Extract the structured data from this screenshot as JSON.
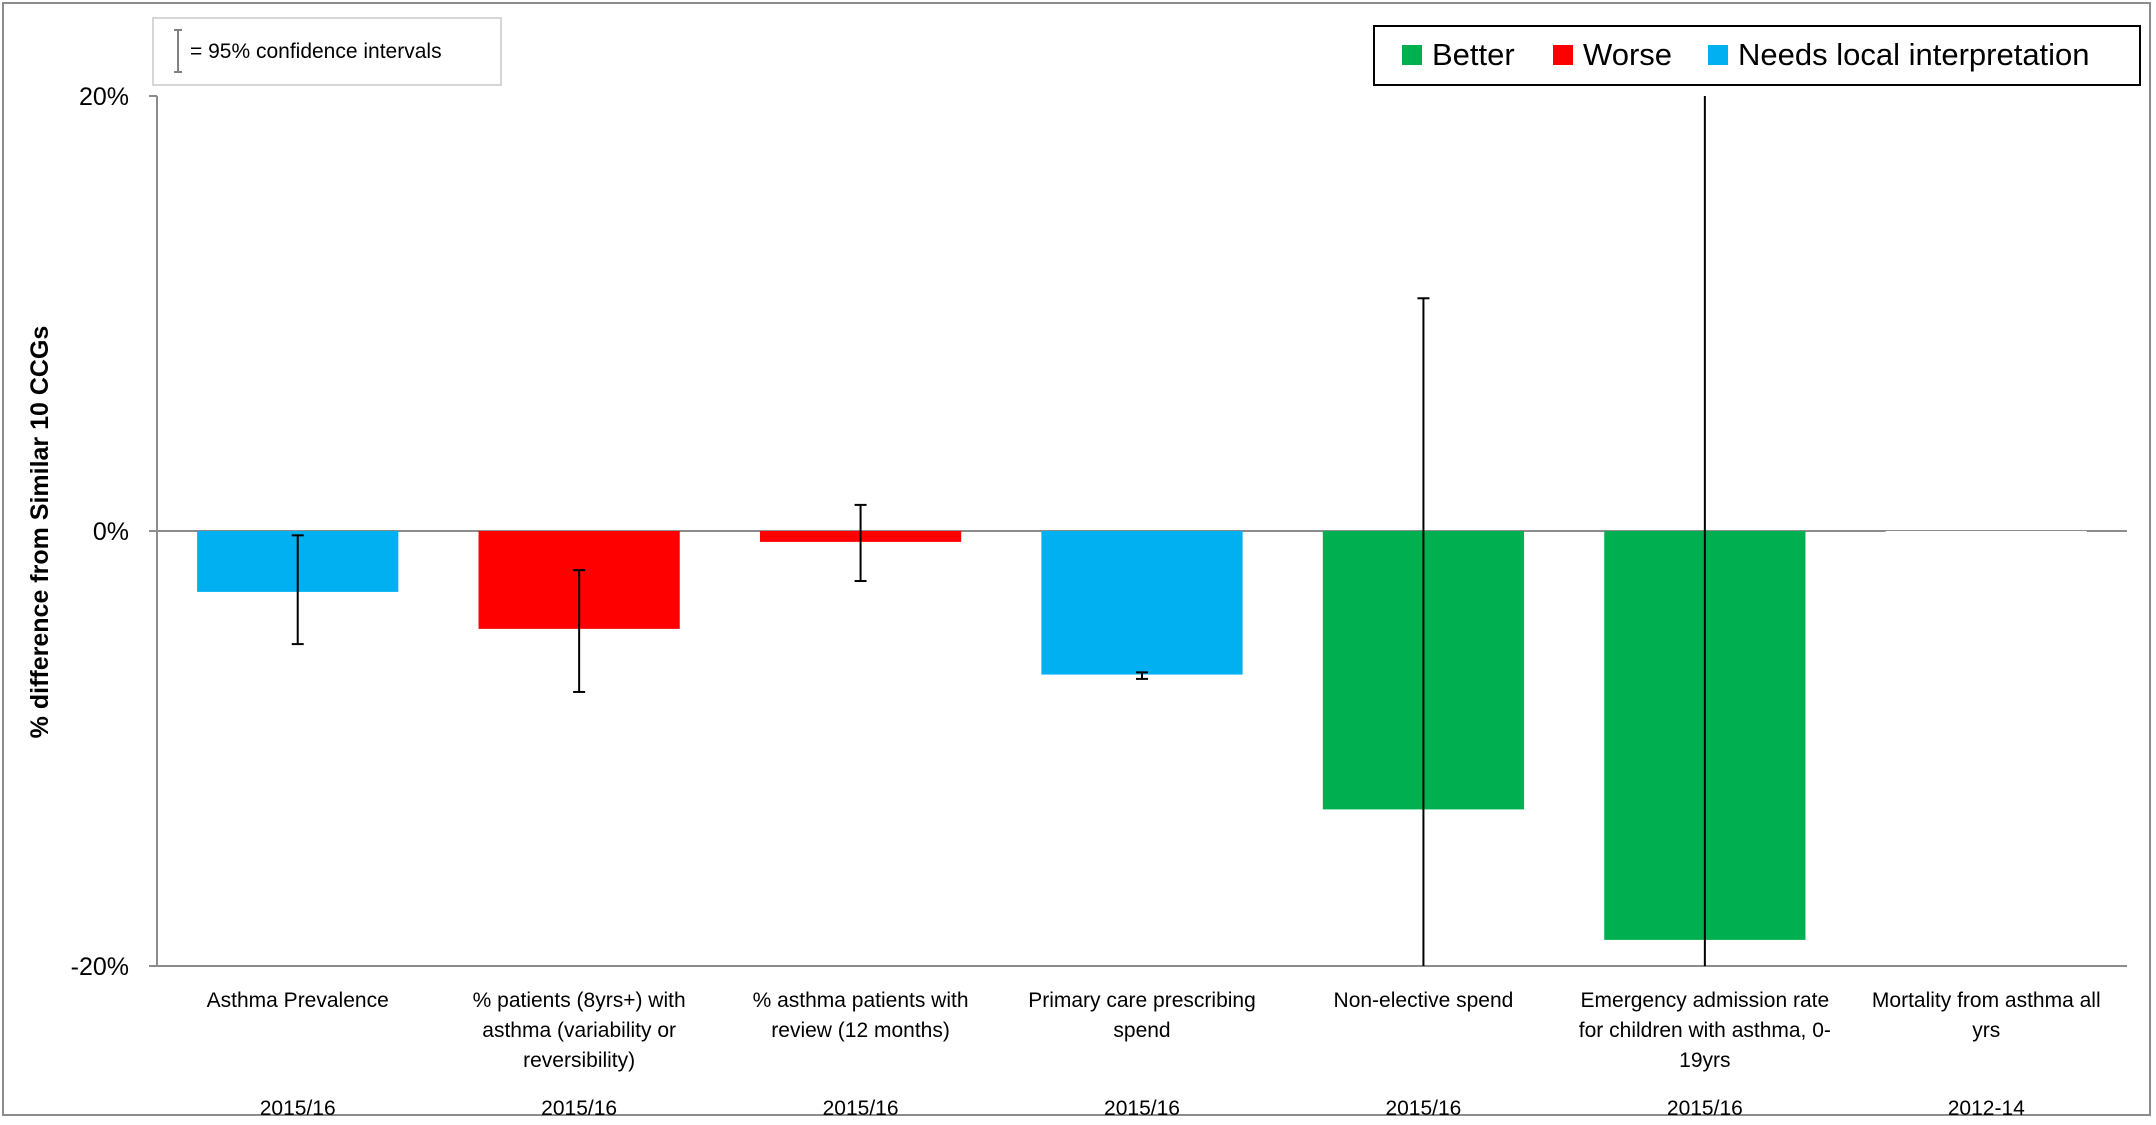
{
  "chart_data": {
    "type": "bar",
    "title": "",
    "xlabel": "",
    "ylabel": "% difference from Similar 10 CCGs",
    "ylim": [
      -20,
      20
    ],
    "yticks": [
      20,
      0,
      -20
    ],
    "ytick_labels": [
      "20%",
      "0%",
      "-20%"
    ],
    "grid": false,
    "legend_placement": "top-right",
    "ci_note": "= 95% confidence intervals",
    "legend": [
      {
        "name": "Better",
        "color": "#00B050"
      },
      {
        "name": "Worse",
        "color": "#FF0000"
      },
      {
        "name": "Needs local interpretation",
        "color": "#00B0F0"
      }
    ],
    "categories": [
      "Asthma Prevalence",
      "% patients (8yrs+) with asthma (variability or reversibility)",
      "% asthma patients with review (12 months)",
      "Primary care prescribing spend",
      "Non-elective spend",
      "Emergency admission rate for children with asthma, 0-19yrs",
      "Mortality from asthma all yrs"
    ],
    "category_lines": [
      [
        "Asthma Prevalence"
      ],
      [
        "% patients (8yrs+) with",
        "asthma (variability or",
        "reversibility)"
      ],
      [
        "% asthma patients with",
        "review (12 months)"
      ],
      [
        "Primary care prescribing",
        "spend"
      ],
      [
        "Non-elective spend"
      ],
      [
        "Emergency admission rate",
        "for children with asthma, 0-",
        "19yrs"
      ],
      [
        "Mortality from asthma all",
        "yrs"
      ]
    ],
    "periods": [
      "2015/16",
      "2015/16",
      "2015/16",
      "2015/16",
      "2015/16",
      "2015/16",
      "2012-14"
    ],
    "values": [
      -2.8,
      -4.5,
      -0.5,
      -6.6,
      -12.8,
      -18.8,
      0
    ],
    "ci_low": [
      -5.2,
      -7.4,
      -2.3,
      -6.8,
      -20,
      -20,
      null
    ],
    "ci_high": [
      -0.2,
      -1.8,
      1.2,
      -6.5,
      10.7,
      20,
      null
    ],
    "status": [
      "Needs local interpretation",
      "Worse",
      "Worse",
      "Needs local interpretation",
      "Better",
      "Better",
      ""
    ],
    "colors": [
      "#00B0F0",
      "#FF0000",
      "#FF0000",
      "#00B0F0",
      "#00B050",
      "#00B050",
      "#FFFFFF"
    ]
  }
}
